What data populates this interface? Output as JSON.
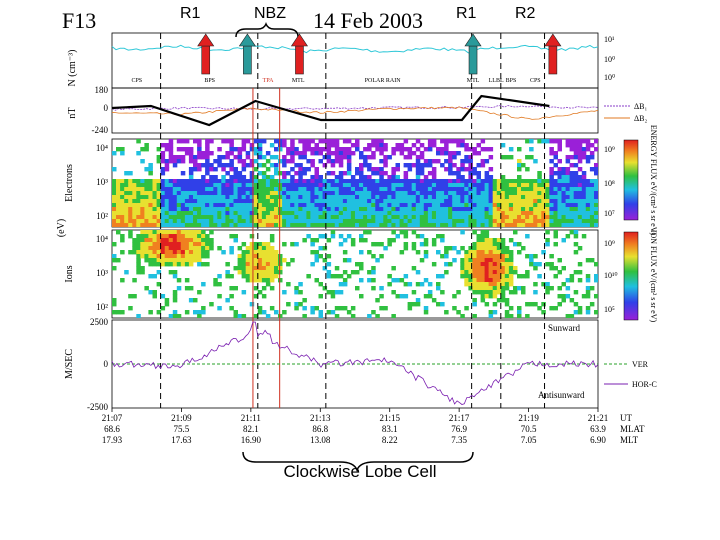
{
  "header": {
    "satellite": "F13",
    "date": "14 Feb 2003",
    "labels": [
      "R1",
      "NBZ",
      "R1",
      "R2"
    ]
  },
  "caption": "Clockwise Lobe Cell",
  "panels": {
    "density": {
      "ylabel": "N (cm⁻³)",
      "ticks": [
        "10¹",
        "10⁰",
        "10⁰"
      ],
      "regions": [
        "CPS",
        "BPS",
        "TPA",
        "MTL",
        "POLAR RAIN",
        "MTL",
        "LLBL",
        "BPS",
        "CPS"
      ],
      "highlight_region": "TPA"
    },
    "magnetic": {
      "ylabel": "nT",
      "ticks": [
        "180",
        "0",
        "-240"
      ],
      "legend": [
        "ΔB₁",
        "ΔB₂"
      ]
    },
    "electrons": {
      "ylabel": "Electrons",
      "ticks": [
        "10⁴",
        "10³",
        "10²"
      ],
      "colorbar_label": "ENERGY FLUX eV/(cm² s sr eV)",
      "colorbar_ticks": [
        "10⁷",
        "10⁸",
        "10⁹"
      ]
    },
    "ions": {
      "ylabel": "Ions",
      "ticks": [
        "10⁴",
        "10³",
        "10²"
      ],
      "colorbar_label": "ION FLUX eV/(cm² s sr eV)",
      "colorbar_ticks": [
        "10⁹",
        "10¹⁰",
        "10⁵"
      ]
    },
    "shared_ylabel": "(eV)",
    "velocity": {
      "ylabel": "M/SEC",
      "ticks": [
        "2500",
        "0",
        "-2500"
      ],
      "annotations": [
        "Sunward",
        "Antisunward"
      ],
      "legend": [
        "VER",
        "HOR-C"
      ]
    }
  },
  "axis": {
    "rows": [
      "UT",
      "MLAT",
      "MLT"
    ],
    "ticks": [
      {
        "ut": "21:07",
        "mlat": "68.6",
        "mlt": "17.93"
      },
      {
        "ut": "21:09",
        "mlat": "75.5",
        "mlt": "17.63"
      },
      {
        "ut": "21:11",
        "mlat": "82.1",
        "mlt": "16.90"
      },
      {
        "ut": "21:13",
        "mlat": "86.8",
        "mlt": "13.08"
      },
      {
        "ut": "21:15",
        "mlat": "83.1",
        "mlt": "8.22"
      },
      {
        "ut": "21:17",
        "mlat": "76.9",
        "mlt": "7.35"
      },
      {
        "ut": "21:19",
        "mlat": "70.5",
        "mlt": "7.05"
      },
      {
        "ut": "21:21",
        "mlat": "63.9",
        "mlt": "6.90"
      }
    ]
  },
  "chart_data": {
    "type": "line",
    "title": "F13 14 Feb 2003",
    "x_unit": "UT",
    "x": [
      "21:07",
      "21:09",
      "21:11",
      "21:13",
      "21:15",
      "21:17",
      "21:19",
      "21:21"
    ],
    "xlim": [
      "21:07",
      "21:21"
    ],
    "series": [
      {
        "name": "ΔB₁",
        "color": "#8a3cc8",
        "ylim": [
          -240,
          180
        ],
        "values": [
          20,
          35,
          25,
          30,
          40,
          45,
          60,
          35
        ]
      },
      {
        "name": "ΔB₂",
        "color": "#e07820",
        "ylim": [
          -240,
          180
        ],
        "values": [
          -20,
          -40,
          30,
          -20,
          30,
          40,
          -100,
          5
        ]
      },
      {
        "name": "VER",
        "color": "#2aa02a",
        "ylim": [
          -2500,
          2500
        ],
        "values": [
          0,
          0,
          100,
          0,
          0,
          0,
          0,
          0
        ]
      },
      {
        "name": "HOR-C",
        "color": "#7a1fb0",
        "ylim": [
          -2500,
          2500
        ],
        "values": [
          0,
          -100,
          1800,
          0,
          200,
          -2400,
          0,
          0
        ]
      }
    ],
    "spectrograms": [
      {
        "name": "Electrons",
        "energy_range_eV": [
          30,
          30000
        ]
      },
      {
        "name": "Ions",
        "energy_range_eV": [
          30,
          30000
        ]
      }
    ],
    "markers": [
      {
        "label": "R1",
        "ut": "21:09.7",
        "color": "#e02020"
      },
      {
        "label": "NBZ",
        "ut": "21:10.9",
        "color": "#2a9a9a"
      },
      {
        "label": "NBZ",
        "ut": "21:12.4",
        "color": "#e02020"
      },
      {
        "label": "R1",
        "ut": "21:17.4",
        "color": "#2a9a9a"
      },
      {
        "label": "R2",
        "ut": "21:19.7",
        "color": "#e02020"
      }
    ],
    "colors": {
      "density_line": "#30c8d8",
      "overlay_line": "#000000",
      "cell_marker": "#d03020"
    }
  }
}
